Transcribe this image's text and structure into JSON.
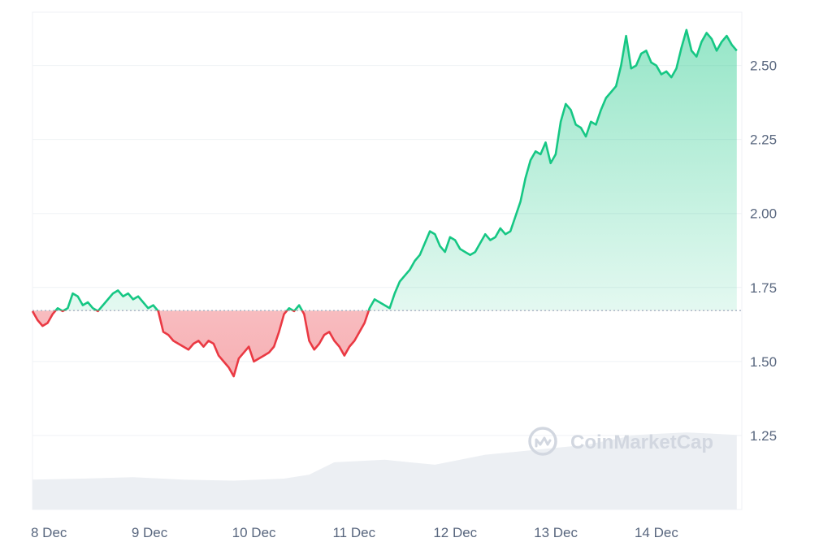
{
  "chart_data": {
    "type": "line",
    "y_ticks": [
      1.25,
      1.5,
      1.75,
      2.0,
      2.25,
      2.5
    ],
    "y_tick_labels": [
      "1.25",
      "1.50",
      "1.75",
      "2.00",
      "2.25",
      "2.50"
    ],
    "ylim": [
      1.0,
      2.68
    ],
    "x_ticks": [
      0,
      1,
      2,
      3,
      4,
      5,
      6
    ],
    "x_tick_labels": [
      "8 Dec",
      "9 Dec",
      "10 Dec",
      "11 Dec",
      "12 Dec",
      "13 Dec",
      "14 Dec"
    ],
    "xlim": [
      0,
      7.05
    ],
    "baseline": 1.672,
    "grid": true,
    "colors": {
      "up": "#16c784",
      "down": "#ea3943",
      "volume": "#eceff3",
      "grid": "#eff2f5"
    },
    "series": [
      {
        "x": [
          0.0,
          0.05,
          0.1,
          0.15,
          0.2,
          0.25,
          0.3,
          0.35,
          0.4,
          0.45,
          0.5,
          0.55,
          0.6,
          0.65,
          0.7,
          0.75,
          0.8,
          0.85,
          0.9,
          0.95,
          1.0,
          1.05,
          1.1,
          1.15,
          1.2,
          1.25,
          1.3,
          1.35,
          1.4,
          1.45,
          1.5,
          1.55,
          1.6,
          1.65,
          1.7,
          1.75,
          1.8,
          1.85,
          1.9,
          1.95,
          2.0,
          2.05,
          2.1,
          2.15,
          2.2,
          2.25,
          2.3,
          2.35,
          2.4,
          2.45,
          2.5,
          2.55,
          2.6,
          2.65,
          2.7,
          2.75,
          2.8,
          2.85,
          2.9,
          2.95,
          3.0,
          3.05,
          3.1,
          3.15,
          3.2,
          3.25,
          3.3,
          3.35,
          3.4,
          3.45,
          3.5,
          3.55,
          3.6,
          3.65,
          3.7,
          3.75,
          3.8,
          3.85,
          3.9,
          3.95,
          4.0,
          4.05,
          4.1,
          4.15,
          4.2,
          4.25,
          4.3,
          4.35,
          4.4,
          4.45,
          4.5,
          4.55,
          4.6,
          4.65,
          4.7,
          4.75,
          4.8,
          4.85,
          4.9,
          4.95,
          5.0,
          5.05,
          5.1,
          5.15,
          5.2,
          5.25,
          5.3,
          5.35,
          5.4,
          5.45,
          5.5,
          5.55,
          5.6,
          5.65,
          5.7,
          5.75,
          5.8,
          5.85,
          5.9,
          5.95,
          6.0,
          6.05,
          6.1,
          6.15,
          6.2,
          6.25,
          6.3,
          6.35,
          6.4,
          6.45,
          6.5,
          6.55,
          6.6,
          6.65,
          6.7,
          6.75,
          6.8,
          6.85,
          6.9,
          6.95,
          7.0
        ],
        "y": [
          1.67,
          1.64,
          1.62,
          1.63,
          1.66,
          1.68,
          1.67,
          1.68,
          1.73,
          1.72,
          1.69,
          1.7,
          1.68,
          1.67,
          1.69,
          1.71,
          1.73,
          1.74,
          1.72,
          1.73,
          1.71,
          1.72,
          1.7,
          1.68,
          1.69,
          1.67,
          1.6,
          1.59,
          1.57,
          1.56,
          1.55,
          1.54,
          1.56,
          1.57,
          1.55,
          1.57,
          1.56,
          1.52,
          1.5,
          1.48,
          1.45,
          1.51,
          1.53,
          1.55,
          1.5,
          1.51,
          1.52,
          1.53,
          1.55,
          1.6,
          1.66,
          1.68,
          1.67,
          1.69,
          1.66,
          1.57,
          1.54,
          1.56,
          1.59,
          1.6,
          1.57,
          1.55,
          1.52,
          1.55,
          1.57,
          1.6,
          1.63,
          1.68,
          1.71,
          1.7,
          1.69,
          1.68,
          1.73,
          1.77,
          1.79,
          1.81,
          1.84,
          1.86,
          1.9,
          1.94,
          1.93,
          1.89,
          1.87,
          1.92,
          1.91,
          1.88,
          1.87,
          1.86,
          1.87,
          1.9,
          1.93,
          1.91,
          1.92,
          1.95,
          1.93,
          1.94,
          1.99,
          2.04,
          2.12,
          2.18,
          2.21,
          2.2,
          2.24,
          2.17,
          2.2,
          2.31,
          2.37,
          2.35,
          2.3,
          2.29,
          2.26,
          2.31,
          2.3,
          2.35,
          2.39,
          2.41,
          2.43,
          2.5,
          2.6,
          2.49,
          2.5,
          2.54,
          2.55,
          2.51,
          2.5,
          2.47,
          2.48,
          2.46,
          2.49,
          2.56,
          2.62,
          2.55,
          2.53,
          2.58,
          2.61,
          2.59,
          2.55,
          2.58,
          2.6,
          2.57,
          2.55
        ]
      }
    ],
    "volume": {
      "x": [
        0.0,
        0.5,
        1.0,
        1.5,
        2.0,
        2.5,
        2.75,
        3.0,
        3.5,
        4.0,
        4.25,
        4.5,
        5.0,
        5.5,
        6.0,
        6.5,
        7.0
      ],
      "values": [
        0.06,
        0.062,
        0.065,
        0.06,
        0.058,
        0.062,
        0.07,
        0.095,
        0.1,
        0.09,
        0.1,
        0.11,
        0.12,
        0.13,
        0.15,
        0.155,
        0.15
      ]
    },
    "watermark": "CoinMarketCap"
  }
}
